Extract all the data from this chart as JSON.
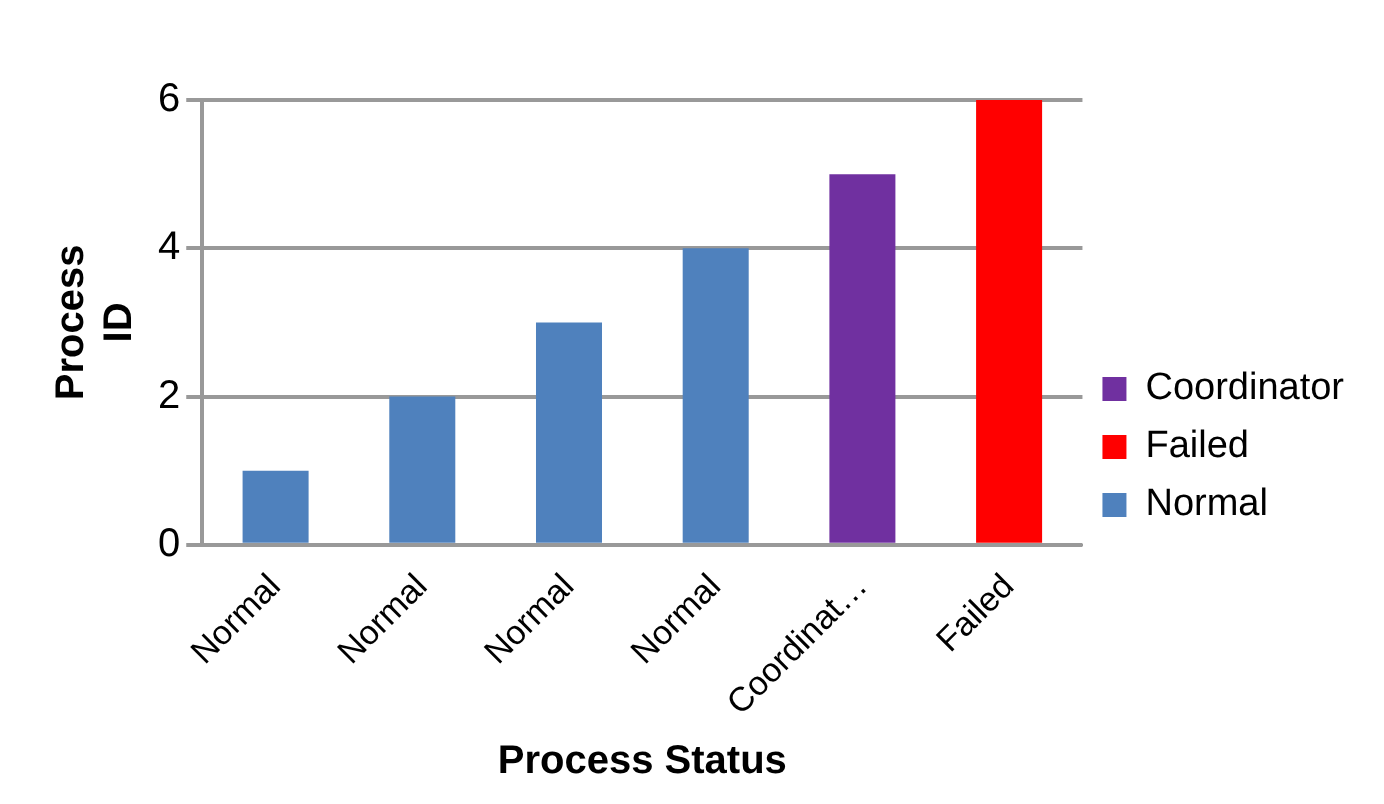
{
  "chart_data": {
    "type": "bar",
    "stacked": true,
    "xlabel": "Process Status",
    "ylabel": "Process ID",
    "categories": [
      "Normal",
      "Normal",
      "Normal",
      "Normal",
      "Coordinat…",
      "Failed"
    ],
    "series": [
      {
        "name": "Coordinator",
        "color": "#7030a0",
        "values": [
          null,
          null,
          null,
          null,
          5,
          null
        ]
      },
      {
        "name": "Failed",
        "color": "#ff0000",
        "values": [
          null,
          null,
          null,
          null,
          null,
          6
        ]
      },
      {
        "name": "Normal",
        "color": "#4f81bd",
        "values": [
          1,
          2,
          3,
          4,
          null,
          null
        ]
      }
    ],
    "ylim": [
      0,
      6
    ],
    "yticks": [
      0,
      2,
      4,
      6
    ],
    "grid": "y",
    "legend": "right"
  }
}
